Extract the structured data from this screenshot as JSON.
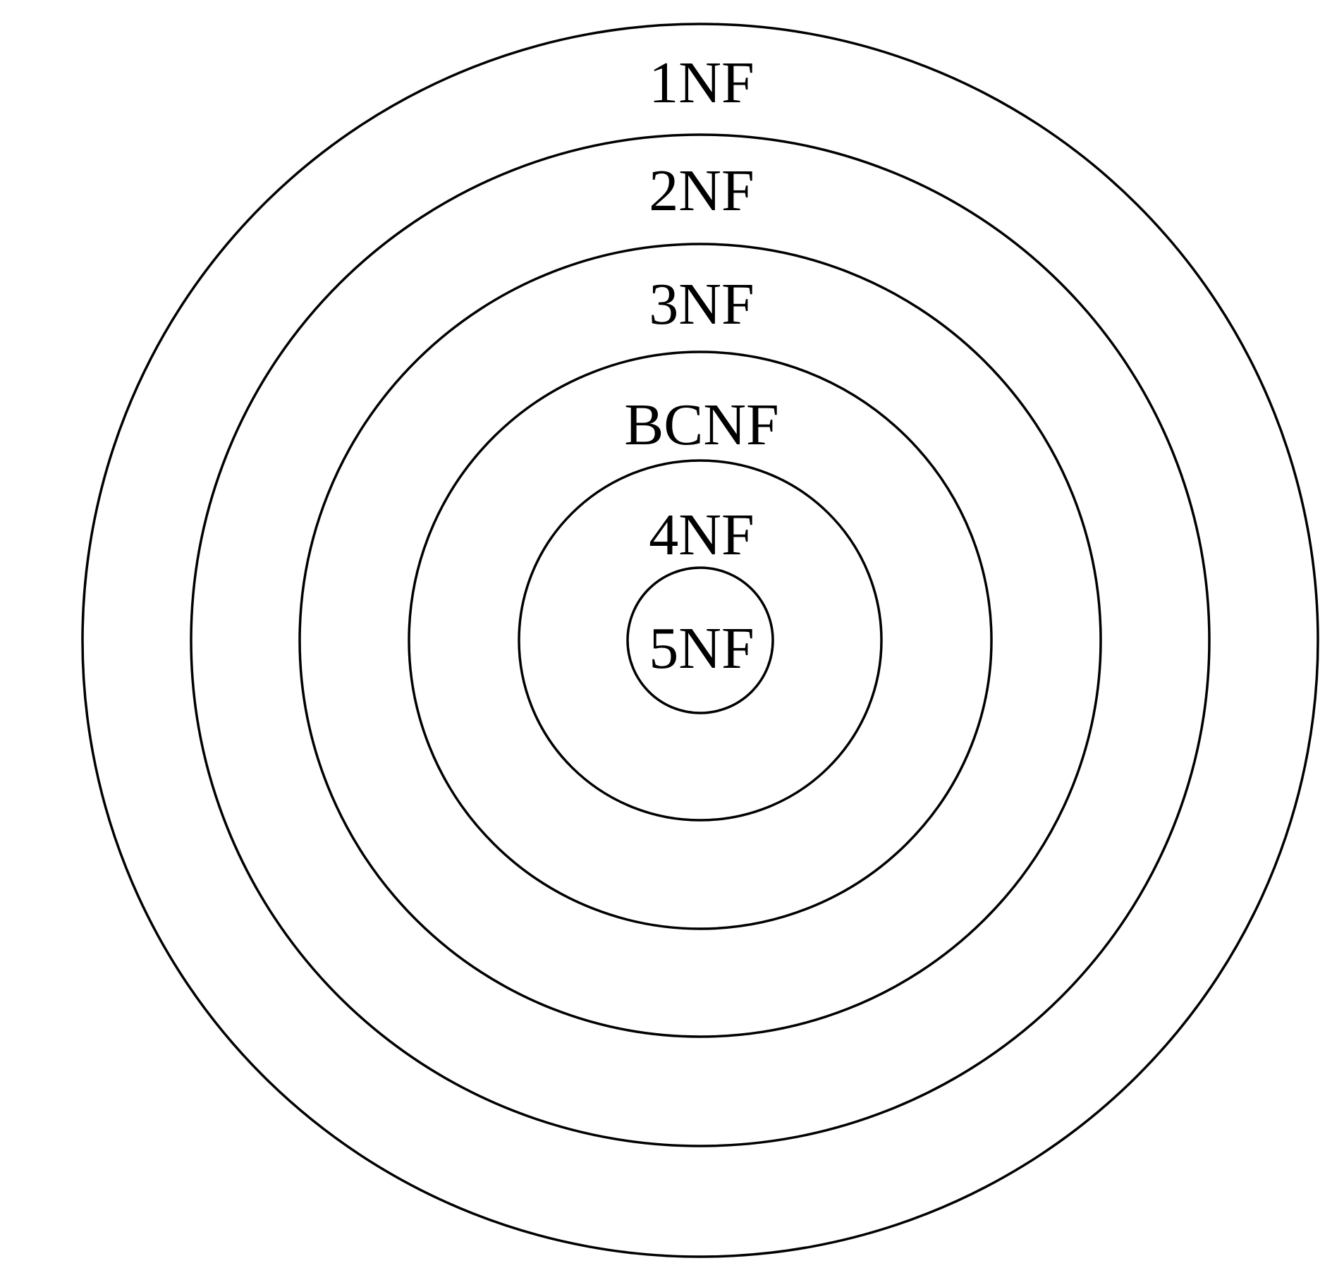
{
  "diagram": {
    "levels": [
      {
        "label": "1NF"
      },
      {
        "label": "2NF"
      },
      {
        "label": "3NF"
      },
      {
        "label": "BCNF"
      },
      {
        "label": "4NF"
      },
      {
        "label": "5NF"
      }
    ],
    "colors": {
      "stroke": "#000000",
      "text": "#000000",
      "background": "#ffffff"
    }
  }
}
